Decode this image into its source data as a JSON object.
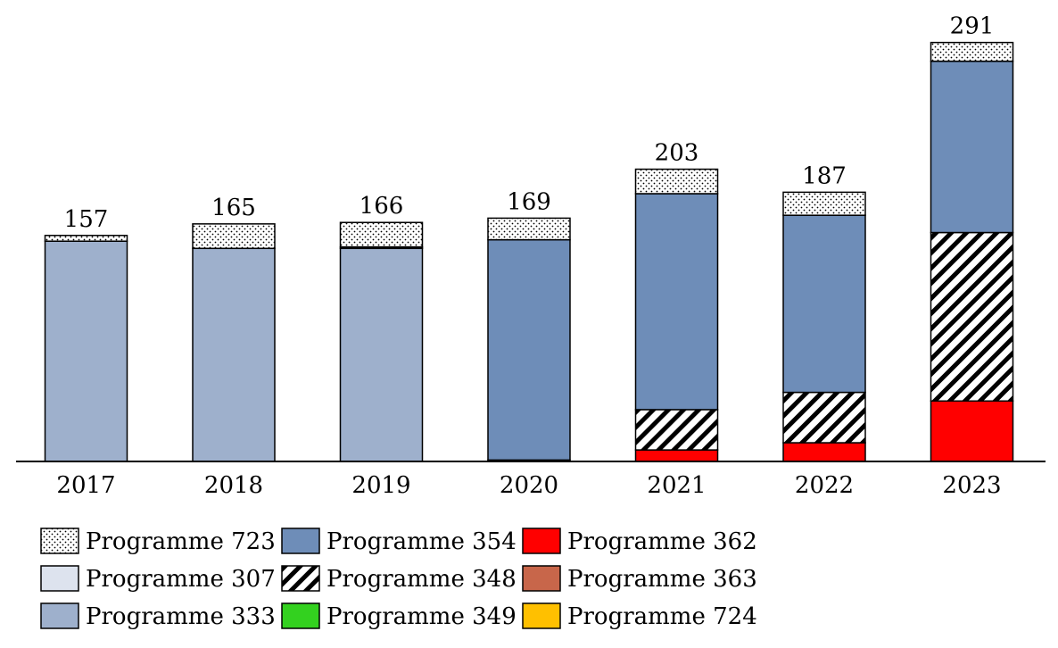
{
  "chart_data": {
    "type": "bar",
    "stacked": true,
    "title": "",
    "xlabel": "",
    "ylabel": "",
    "ylim": [
      0,
      300
    ],
    "grid": false,
    "categories": [
      "2017",
      "2018",
      "2019",
      "2020",
      "2021",
      "2022",
      "2023"
    ],
    "totals": [
      157,
      165,
      166,
      169,
      203,
      187,
      291
    ],
    "series": [
      {
        "name": "Programme 723",
        "pattern": "dots",
        "color": "#ffffff",
        "values": [
          4,
          17,
          17,
          15,
          17,
          16,
          13
        ]
      },
      {
        "name": "Programme 307",
        "pattern": "solid",
        "color": "#dde3ee",
        "values": [
          0,
          0,
          0,
          0,
          0,
          0,
          0
        ]
      },
      {
        "name": "Programme 333",
        "pattern": "solid",
        "color": "#9eb0cc",
        "values": [
          153,
          148,
          148,
          0,
          0,
          0,
          0
        ]
      },
      {
        "name": "Programme 354",
        "pattern": "solid",
        "color": "#6e8db8",
        "values": [
          0,
          0,
          1,
          153,
          150,
          123,
          119
        ]
      },
      {
        "name": "Programme 348",
        "pattern": "diagonal",
        "color": "#ffffff",
        "values": [
          0,
          0,
          0,
          1,
          28,
          35,
          117
        ]
      },
      {
        "name": "Programme 349",
        "pattern": "solid",
        "color": "#33d11f",
        "values": [
          0,
          0,
          0,
          0,
          0,
          0,
          0
        ]
      },
      {
        "name": "Programme 362",
        "pattern": "solid",
        "color": "#ff0000",
        "values": [
          0,
          0,
          0,
          0,
          8,
          13,
          42
        ]
      },
      {
        "name": "Programme 363",
        "pattern": "solid",
        "color": "#c8664a",
        "values": [
          0,
          0,
          0,
          0,
          0,
          0,
          0
        ]
      },
      {
        "name": "Programme 724",
        "pattern": "solid",
        "color": "#ffc000",
        "values": [
          0,
          0,
          0,
          0,
          0,
          0,
          0
        ]
      }
    ],
    "stack_order": [
      "Programme 362",
      "Programme 348",
      "Programme 333",
      "Programme 354",
      "Programme 723"
    ],
    "legend": {
      "position": "bottom",
      "columns": [
        [
          "Programme 723",
          "Programme 307",
          "Programme 333"
        ],
        [
          "Programme 354",
          "Programme 348",
          "Programme 349"
        ],
        [
          "Programme 362",
          "Programme 363",
          "Programme 724"
        ]
      ]
    }
  }
}
